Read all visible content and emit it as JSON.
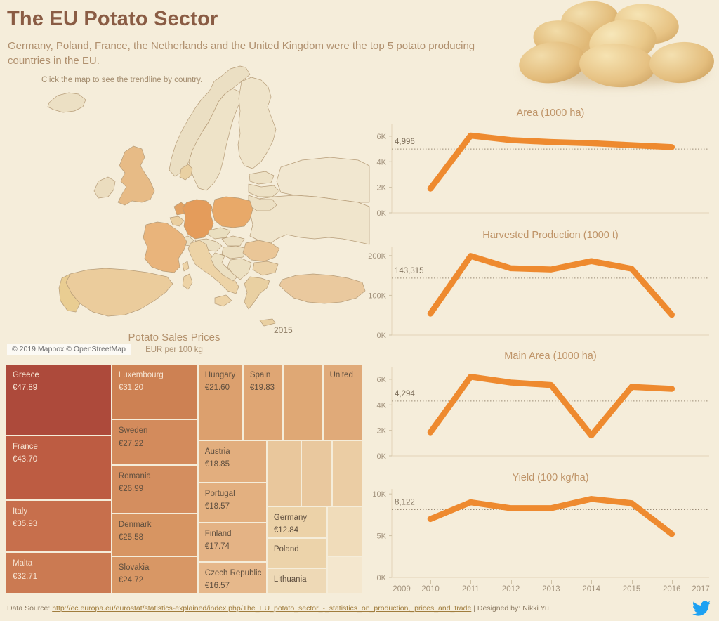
{
  "page": {
    "background": "#f5edda",
    "accent_orange": "#ee8a2f",
    "title_brown": "#8a5c44"
  },
  "header": {
    "title": "The EU Potato Sector",
    "subtitle": "Germany, Poland, France, the Netherlands and the United Kingdom were the top 5 potato producing countries in the EU.",
    "hint": "Click the map to see the trendline by country."
  },
  "map": {
    "year_label": "2015",
    "attribution": "© 2019 Mapbox © OpenStreetMap",
    "country_fills": {
      "base": "#ece0c4",
      "iceland": "#ece0c4",
      "norway": "#ebdfc3",
      "sweden": "#eee3c8",
      "finland": "#efe4ca",
      "estonia": "#ede1c5",
      "latvia": "#ede1c5",
      "lithuania": "#ece0c4",
      "denmark": "#e9d0a2",
      "uk": "#e7bb86",
      "ireland": "#ebddbf",
      "netherlands": "#e2a263",
      "belgium": "#eacfa0",
      "germany": "#e49c5b",
      "poland": "#e8a969",
      "france": "#e9b47b",
      "spain": "#ebcc9c",
      "portugal": "#e9cd92",
      "italy": "#edd3a6",
      "sicily": "#edd3a6",
      "sardinia": "#edd3a6",
      "corsica": "#edd3a6",
      "switzerland": "#ece1c5",
      "austria": "#ebdfc2",
      "czech": "#eadfc0",
      "slovakia": "#ebdec0",
      "hungary": "#ebdec0",
      "croatia": "#ece0c2",
      "serbia": "#ece0c2",
      "romania": "#eac697",
      "bulgaria": "#ebd2a8",
      "greece": "#e9d0a2",
      "crete": "#e9d0a2",
      "turkey": "#eac99e",
      "east": "#f0e5cc",
      "northeast": "#f1e7d0"
    }
  },
  "x_axis": {
    "labels": [
      "2009",
      "2010",
      "2011",
      "2012",
      "2013",
      "2014",
      "2015",
      "2016",
      "2017"
    ]
  },
  "chart_data": [
    {
      "type": "treemap",
      "title": "Potato Sales Prices",
      "unit": "EUR per 100 kg",
      "cells": [
        {
          "country": "Greece",
          "price": "€47.89",
          "value": 47.89,
          "rect": [
            0,
            0,
            0.297,
            0.312
          ],
          "color": "#ad4a3b",
          "light_text": true
        },
        {
          "country": "France",
          "price": "€43.70",
          "value": 43.7,
          "rect": [
            0,
            0.312,
            0.297,
            0.281
          ],
          "color": "#bd5c42",
          "light_text": true
        },
        {
          "country": "Italy",
          "price": "€35.93",
          "value": 35.93,
          "rect": [
            0,
            0.593,
            0.297,
            0.227
          ],
          "color": "#c76f4c",
          "light_text": true
        },
        {
          "country": "Malta",
          "price": "€32.71",
          "value": 32.71,
          "rect": [
            0,
            0.82,
            0.297,
            0.18
          ],
          "color": "#cb7a52",
          "light_text": true
        },
        {
          "country": "Luxembourg",
          "price": "€31.20",
          "value": 31.2,
          "rect": [
            0.297,
            0,
            0.242,
            0.242
          ],
          "color": "#cd8153",
          "light_text": true
        },
        {
          "country": "Sweden",
          "price": "€27.22",
          "value": 27.22,
          "rect": [
            0.297,
            0.242,
            0.242,
            0.198
          ],
          "color": "#d38b5c",
          "light_text": false
        },
        {
          "country": "Romania",
          "price": "€26.99",
          "value": 26.99,
          "rect": [
            0.297,
            0.44,
            0.242,
            0.211
          ],
          "color": "#d48e5f",
          "light_text": false
        },
        {
          "country": "Denmark",
          "price": "€25.58",
          "value": 25.58,
          "rect": [
            0.297,
            0.651,
            0.242,
            0.187
          ],
          "color": "#d79562",
          "light_text": false
        },
        {
          "country": "Slovakia",
          "price": "€24.72",
          "value": 24.72,
          "rect": [
            0.297,
            0.838,
            0.242,
            0.162
          ],
          "color": "#d89765",
          "light_text": false
        },
        {
          "country": "Hungary",
          "price": "€21.60",
          "value": 21.6,
          "rect": [
            0.539,
            0,
            0.126,
            0.333
          ],
          "color": "#dca06e",
          "light_text": false
        },
        {
          "country": "Spain",
          "price": "€19.83",
          "value": 19.83,
          "rect": [
            0.665,
            0,
            0.112,
            0.333
          ],
          "color": "#dfa674",
          "light_text": false
        },
        {
          "country": "",
          "price": "",
          "value": null,
          "rect": [
            0.777,
            0,
            0.112,
            0.333
          ],
          "color": "#dfa875",
          "light_text": false
        },
        {
          "country": "United",
          "price": "",
          "value": null,
          "rect": [
            0.889,
            0,
            0.111,
            0.333
          ],
          "color": "#e0aa79",
          "light_text": false
        },
        {
          "country": "Austria",
          "price": "€18.85",
          "value": 18.85,
          "rect": [
            0.539,
            0.333,
            0.193,
            0.184
          ],
          "color": "#e2ae7e",
          "light_text": false
        },
        {
          "country": "Portugal",
          "price": "€18.57",
          "value": 18.57,
          "rect": [
            0.539,
            0.517,
            0.193,
            0.174
          ],
          "color": "#e3b080",
          "light_text": false
        },
        {
          "country": "Finland",
          "price": "€17.74",
          "value": 17.74,
          "rect": [
            0.539,
            0.691,
            0.193,
            0.171
          ],
          "color": "#e4b385",
          "light_text": false
        },
        {
          "country": "Czech Republic",
          "price": "€16.57",
          "value": 16.57,
          "rect": [
            0.539,
            0.862,
            0.193,
            0.138
          ],
          "color": "#e6b88b",
          "light_text": false
        },
        {
          "country": "",
          "price": "",
          "value": null,
          "rect": [
            0.732,
            0.333,
            0.0965,
            0.288
          ],
          "color": "#e9c79c",
          "light_text": false
        },
        {
          "country": "",
          "price": "",
          "value": null,
          "rect": [
            0.8285,
            0.333,
            0.0865,
            0.288
          ],
          "color": "#e9c89e",
          "light_text": false
        },
        {
          "country": "",
          "price": "",
          "value": null,
          "rect": [
            0.915,
            0.333,
            0.085,
            0.288
          ],
          "color": "#ebcda4",
          "light_text": false
        },
        {
          "country": "Germany",
          "price": "€12.84",
          "value": 12.84,
          "rect": [
            0.732,
            0.621,
            0.169,
            0.138
          ],
          "color": "#ecd2a8",
          "light_text": false
        },
        {
          "country": "Poland",
          "price": "",
          "value": null,
          "rect": [
            0.732,
            0.759,
            0.169,
            0.131
          ],
          "color": "#ecd3aa",
          "light_text": false
        },
        {
          "country": "Lithuania",
          "price": "",
          "value": null,
          "rect": [
            0.732,
            0.89,
            0.169,
            0.11
          ],
          "color": "#eed9b6",
          "light_text": false
        },
        {
          "country": "",
          "price": "",
          "value": null,
          "rect": [
            0.901,
            0.621,
            0.099,
            0.217
          ],
          "color": "#f0dcba",
          "light_text": false
        },
        {
          "country": "",
          "price": "",
          "value": null,
          "rect": [
            0.901,
            0.838,
            0.099,
            0.162
          ],
          "color": "#f4e7ce",
          "light_text": false
        }
      ]
    },
    {
      "id": "area",
      "type": "line",
      "title": "Area (1000 ha)",
      "x": [
        2010,
        2011,
        2012,
        2013,
        2014,
        2015,
        2016
      ],
      "values": [
        1900,
        6050,
        5700,
        5550,
        5450,
        5300,
        5150
      ],
      "reference": {
        "label": "4,996",
        "value": 4996
      },
      "yticks": [
        {
          "label": "0K",
          "value": 0
        },
        {
          "label": "2K",
          "value": 2000
        },
        {
          "label": "4K",
          "value": 4000
        },
        {
          "label": "6K",
          "value": 6000
        }
      ],
      "ymax": 6600
    },
    {
      "id": "harvested",
      "type": "line",
      "title": "Harvested Production (1000 t)",
      "x": [
        2010,
        2011,
        2012,
        2013,
        2014,
        2015,
        2016
      ],
      "values": [
        54000,
        199000,
        168000,
        165000,
        186000,
        167000,
        51000
      ],
      "reference": {
        "label": "143,315",
        "value": 143315
      },
      "yticks": [
        {
          "label": "0K",
          "value": 0
        },
        {
          "label": "100K",
          "value": 100000
        },
        {
          "label": "200K",
          "value": 200000
        }
      ],
      "ymax": 212000
    },
    {
      "id": "main-area",
      "type": "line",
      "title": "Main Area (1000 ha)",
      "x": [
        2010,
        2011,
        2012,
        2013,
        2014,
        2015,
        2016
      ],
      "values": [
        1850,
        6200,
        5750,
        5550,
        1600,
        5400,
        5250
      ],
      "reference": {
        "label": "4,294",
        "value": 4294
      },
      "yticks": [
        {
          "label": "0K",
          "value": 0
        },
        {
          "label": "2K",
          "value": 2000
        },
        {
          "label": "4K",
          "value": 4000
        },
        {
          "label": "6K",
          "value": 6000
        }
      ],
      "ymax": 6600
    },
    {
      "id": "yield",
      "type": "line",
      "title": "Yield (100 kg/ha)",
      "x": [
        2010,
        2011,
        2012,
        2013,
        2014,
        2015,
        2016
      ],
      "values": [
        7000,
        9000,
        8300,
        8300,
        9400,
        8900,
        5200
      ],
      "reference": {
        "label": "8,122",
        "value": 8122
      },
      "yticks": [
        {
          "label": "0K",
          "value": 0
        },
        {
          "label": "5K",
          "value": 5000
        },
        {
          "label": "10K",
          "value": 10000
        }
      ],
      "ymax": 10100
    }
  ],
  "footer": {
    "prefix": "Data Source: ",
    "link": "http://ec.europa.eu/eurostat/statistics-explained/index.php/The_EU_potato_sector_-_statistics_on_production,_prices_and_trade",
    "suffix": " | Designed by: Nikki Yu"
  }
}
